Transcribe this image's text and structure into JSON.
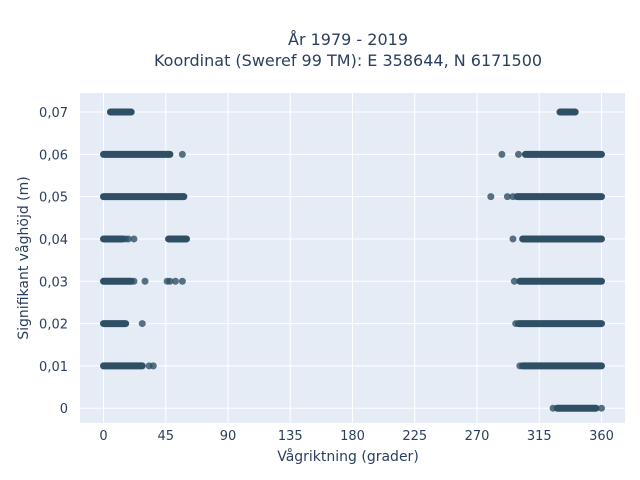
{
  "chart_data": {
    "type": "scatter",
    "title_line1": "År 1979 - 2019",
    "title_line2": "Koordinat (Sweref 99 TM): E 358644, N 6171500",
    "xlabel": "Vågriktning (grader)",
    "ylabel": "Signifikant våghöjd (m)",
    "xlim": [
      -17,
      377
    ],
    "ylim": [
      -0.0035,
      0.0745
    ],
    "x_ticks": [
      0,
      45,
      90,
      135,
      180,
      225,
      270,
      315,
      360
    ],
    "x_tick_labels": [
      "0",
      "45",
      "90",
      "135",
      "180",
      "225",
      "270",
      "315",
      "360"
    ],
    "y_ticks": [
      0,
      0.01,
      0.02,
      0.03,
      0.04,
      0.05,
      0.06,
      0.07
    ],
    "y_tick_labels": [
      "0",
      "0,01",
      "0,02",
      "0,03",
      "0,04",
      "0,05",
      "0,06",
      "0,07"
    ],
    "grid": true,
    "legend": "none",
    "marker_color": "#2f5064",
    "plot_bg": "#e5ecf6",
    "series": [
      {
        "segments": [
          {
            "y": 0.07,
            "x_from": 5,
            "x_to": 20
          },
          {
            "y": 0.06,
            "x_from": 0,
            "x_to": 48
          },
          {
            "y": 0.05,
            "x_from": 0,
            "x_to": 58
          },
          {
            "y": 0.04,
            "x_from": 0,
            "x_to": 14
          },
          {
            "y": 0.04,
            "x_from": 47,
            "x_to": 60
          },
          {
            "y": 0.03,
            "x_from": 0,
            "x_to": 20
          },
          {
            "y": 0.02,
            "x_from": 0,
            "x_to": 16
          },
          {
            "y": 0.01,
            "x_from": 0,
            "x_to": 28
          },
          {
            "y": 0.07,
            "x_from": 330,
            "x_to": 341
          },
          {
            "y": 0.06,
            "x_from": 305,
            "x_to": 360
          },
          {
            "y": 0.05,
            "x_from": 299,
            "x_to": 360
          },
          {
            "y": 0.04,
            "x_from": 303,
            "x_to": 360
          },
          {
            "y": 0.03,
            "x_from": 301,
            "x_to": 360
          },
          {
            "y": 0.02,
            "x_from": 300,
            "x_to": 360
          },
          {
            "y": 0.01,
            "x_from": 303,
            "x_to": 360
          },
          {
            "y": 0.0,
            "x_from": 328,
            "x_to": 356
          }
        ],
        "points": [
          [
            6,
            0.04
          ],
          [
            10,
            0.04
          ],
          [
            16,
            0.04
          ],
          [
            18,
            0.04
          ],
          [
            22,
            0.04
          ],
          [
            22,
            0.03
          ],
          [
            30,
            0.03
          ],
          [
            33,
            0.01
          ],
          [
            36,
            0.01
          ],
          [
            28,
            0.02
          ],
          [
            46,
            0.03
          ],
          [
            48,
            0.03
          ],
          [
            52,
            0.03
          ],
          [
            57,
            0.03
          ],
          [
            57,
            0.06
          ],
          [
            58,
            0.05
          ],
          [
            280,
            0.05
          ],
          [
            292,
            0.05
          ],
          [
            296,
            0.05
          ],
          [
            288,
            0.06
          ],
          [
            300,
            0.06
          ],
          [
            296,
            0.04
          ],
          [
            297,
            0.03
          ],
          [
            298,
            0.02
          ],
          [
            301,
            0.01
          ],
          [
            325,
            0.0
          ],
          [
            360,
            0.0
          ],
          [
            331,
            0.07
          ]
        ]
      }
    ]
  }
}
